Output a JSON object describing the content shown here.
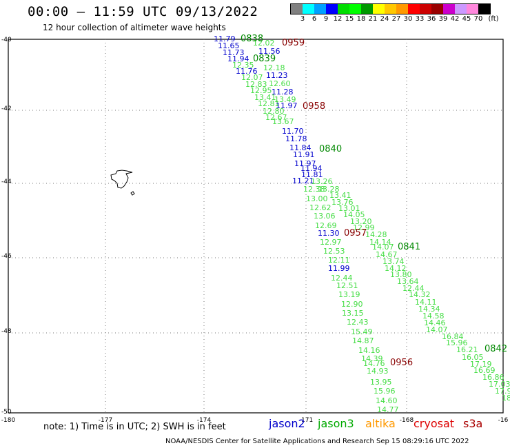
{
  "header": {
    "title": "00:00 – 11:59 UTC 09/13/2022",
    "subtitle": "12 hour collection of altimeter wave heights"
  },
  "legend": {
    "colors": [
      "#808080",
      "#00ffff",
      "#00a0ff",
      "#0000ff",
      "#00dd00",
      "#00ff00",
      "#009900",
      "#ffff00",
      "#ffc800",
      "#ff9900",
      "#ff0000",
      "#cc0000",
      "#990000",
      "#cc00cc",
      "#cc99ff",
      "#ff88dd",
      "#000000"
    ],
    "ticks": [
      "3",
      "6",
      "9",
      "12",
      "15",
      "18",
      "21",
      "24",
      "27",
      "30",
      "33",
      "36",
      "39",
      "42",
      "45",
      "70"
    ],
    "unit": "(ft)"
  },
  "axes": {
    "lat_labels": [
      "-40",
      "-42",
      "-44",
      "-46",
      "-48",
      "-50"
    ],
    "lon_labels": [
      "-180",
      "-177",
      "-174",
      "-171",
      "-168",
      "-16"
    ]
  },
  "colors": {
    "jason2": "#0000cc",
    "jason3": "#00aa00",
    "altika": "#ff9900",
    "cryosat": "#dd0000",
    "s3a": "#aa0000",
    "obs_light": "#44dd44",
    "obs_blue": "#0000cc",
    "time_green": "#008800",
    "time_maroon": "#880000"
  },
  "times": [
    {
      "t": "0838",
      "c": "g"
    },
    {
      "t": "0839",
      "c": "g"
    },
    {
      "t": "0959",
      "c": "m"
    },
    {
      "t": "0958",
      "c": "m"
    },
    {
      "t": "0840",
      "c": "g"
    },
    {
      "t": "0957",
      "c": "m"
    },
    {
      "t": "0841",
      "c": "g"
    },
    {
      "t": "0956",
      "c": "m"
    },
    {
      "t": "0842",
      "c": "g"
    }
  ],
  "obs": [
    {
      "v": "11.79",
      "c": "b"
    },
    {
      "v": "11.65",
      "c": "b"
    },
    {
      "v": "11.73",
      "c": "b"
    },
    {
      "v": "11.94",
      "c": "b"
    },
    {
      "v": "11.76",
      "c": "b"
    },
    {
      "v": "12.02",
      "c": "l"
    },
    {
      "v": "11.56",
      "c": "b"
    },
    {
      "v": "12.35",
      "c": "l"
    },
    {
      "v": "12.18",
      "c": "l"
    },
    {
      "v": "11.23",
      "c": "b"
    },
    {
      "v": "12.07",
      "c": "l"
    },
    {
      "v": "12.83",
      "c": "l"
    },
    {
      "v": "12.60",
      "c": "l"
    },
    {
      "v": "12.95",
      "c": "l"
    },
    {
      "v": "11.28",
      "c": "b"
    },
    {
      "v": "13.41",
      "c": "l"
    },
    {
      "v": "13.49",
      "c": "l"
    },
    {
      "v": "12.81",
      "c": "l"
    },
    {
      "v": "11.97",
      "c": "b"
    },
    {
      "v": "12.80",
      "c": "l"
    },
    {
      "v": "12.67",
      "c": "l"
    },
    {
      "v": "13.67",
      "c": "l"
    },
    {
      "v": "11.70",
      "c": "b"
    },
    {
      "v": "11.78",
      "c": "b"
    },
    {
      "v": "11.84",
      "c": "b"
    },
    {
      "v": "11.91",
      "c": "b"
    },
    {
      "v": "11.97",
      "c": "b"
    },
    {
      "v": "11.94",
      "c": "b"
    },
    {
      "v": "11.81",
      "c": "b"
    },
    {
      "v": "11.21",
      "c": "b"
    },
    {
      "v": "13.26",
      "c": "l"
    },
    {
      "v": "12.38",
      "c": "l"
    },
    {
      "v": "13.28",
      "c": "l"
    },
    {
      "v": "13.41",
      "c": "l"
    },
    {
      "v": "13.00",
      "c": "l"
    },
    {
      "v": "13.76",
      "c": "l"
    },
    {
      "v": "12.62",
      "c": "l"
    },
    {
      "v": "13.01",
      "c": "l"
    },
    {
      "v": "13.06",
      "c": "l"
    },
    {
      "v": "14.05",
      "c": "l"
    },
    {
      "v": "13.20",
      "c": "l"
    },
    {
      "v": "12.69",
      "c": "l"
    },
    {
      "v": "12.99",
      "c": "l"
    },
    {
      "v": "11.30",
      "c": "b"
    },
    {
      "v": "14.28",
      "c": "l"
    },
    {
      "v": "12.97",
      "c": "l"
    },
    {
      "v": "14.14",
      "c": "l"
    },
    {
      "v": "12.53",
      "c": "l"
    },
    {
      "v": "14.07",
      "c": "l"
    },
    {
      "v": "14.67",
      "c": "l"
    },
    {
      "v": "12.11",
      "c": "l"
    },
    {
      "v": "13.74",
      "c": "l"
    },
    {
      "v": "14.12",
      "c": "l"
    },
    {
      "v": "11.99",
      "c": "b"
    },
    {
      "v": "13.80",
      "c": "l"
    },
    {
      "v": "12.44",
      "c": "l"
    },
    {
      "v": "13.64",
      "c": "l"
    },
    {
      "v": "12.51",
      "c": "l"
    },
    {
      "v": "12.44",
      "c": "l"
    },
    {
      "v": "14.32",
      "c": "l"
    },
    {
      "v": "13.19",
      "c": "l"
    },
    {
      "v": "14.11",
      "c": "l"
    },
    {
      "v": "12.90",
      "c": "l"
    },
    {
      "v": "14.34",
      "c": "l"
    },
    {
      "v": "13.15",
      "c": "l"
    },
    {
      "v": "14.58",
      "c": "l"
    },
    {
      "v": "12.43",
      "c": "l"
    },
    {
      "v": "14.46",
      "c": "l"
    },
    {
      "v": "14.07",
      "c": "l"
    },
    {
      "v": "15.49",
      "c": "l"
    },
    {
      "v": "16.84",
      "c": "l"
    },
    {
      "v": "14.87",
      "c": "l"
    },
    {
      "v": "15.96",
      "c": "l"
    },
    {
      "v": "14.16",
      "c": "l"
    },
    {
      "v": "16.21",
      "c": "l"
    },
    {
      "v": "14.39",
      "c": "l"
    },
    {
      "v": "16.05",
      "c": "l"
    },
    {
      "v": "14.76",
      "c": "l"
    },
    {
      "v": "17.19",
      "c": "l"
    },
    {
      "v": "14.93",
      "c": "l"
    },
    {
      "v": "16.69",
      "c": "l"
    },
    {
      "v": "16.86",
      "c": "l"
    },
    {
      "v": "13.95",
      "c": "l"
    },
    {
      "v": "17.03",
      "c": "l"
    },
    {
      "v": "15.96",
      "c": "l"
    },
    {
      "v": "17.9",
      "c": "l"
    },
    {
      "v": "14.60",
      "c": "l"
    },
    {
      "v": "18",
      "c": "l"
    },
    {
      "v": "14.77",
      "c": "l"
    }
  ],
  "note": "note:  1) Time is in UTC; 2) SWH is in feet",
  "satellites": {
    "jason2": "jason2",
    "jason3": "jason3",
    "altika": "altika",
    "cryosat": "cryosat",
    "s3a": "s3a"
  },
  "footer": "NOAA/NESDIS Center for Satellite Applications and Research    Sep 15 08:29:16 UTC 2022"
}
